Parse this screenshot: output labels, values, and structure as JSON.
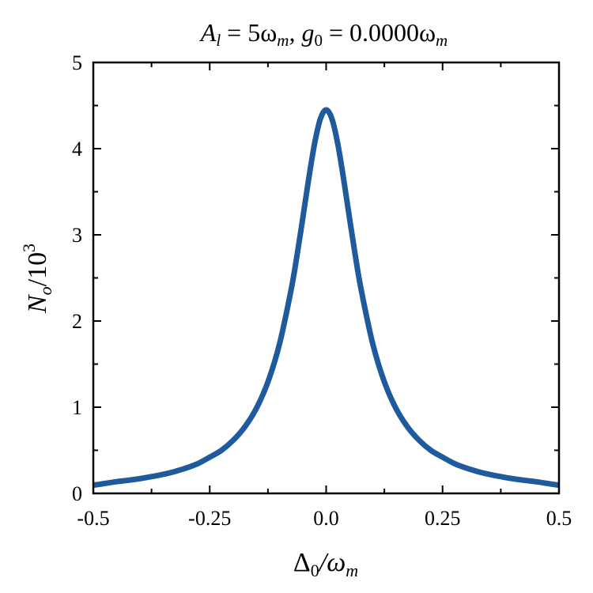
{
  "chart_data": {
    "type": "line",
    "title": {
      "main": "A",
      "sub1": "l",
      "mid": " = 5ω",
      "sub2": "m",
      "mid2": ", g",
      "sub3": "0",
      "mid3": " = 0.0000ω",
      "sub4": "m"
    },
    "xlabel": {
      "main": "Δ",
      "sub1": "0",
      "mid": "/ω",
      "sub2": "m"
    },
    "ylabel": {
      "main": "N",
      "sub1": "o",
      "mid": "/10",
      "sup": "3"
    },
    "xlim": [
      -0.5,
      0.5
    ],
    "ylim": [
      0,
      5
    ],
    "xticks": [
      -0.5,
      -0.25,
      0.0,
      0.25,
      0.5
    ],
    "xtick_labels": [
      "-0.5",
      "-0.25",
      "0.0",
      "0.25",
      "0.5"
    ],
    "yticks": [
      0,
      1,
      2,
      3,
      4,
      5
    ],
    "ytick_labels": [
      "0",
      "1",
      "2",
      "3",
      "4",
      "5"
    ],
    "grid": false,
    "line_color": "#1f5a9c",
    "series": [
      {
        "name": "N_o",
        "x": [
          0,
          0.0125,
          0.025,
          0.0375,
          0.05,
          0.0625,
          0.075,
          0.1,
          0.125,
          0.15,
          0.175,
          0.2,
          0.225,
          0.25,
          0.275,
          0.3,
          0.325,
          0.35,
          0.375,
          0.4,
          0.425,
          0.45,
          0.475,
          0.5
        ],
        "y": [
          4.45,
          4.344,
          4.054,
          3.648,
          3.2,
          2.763,
          2.369,
          1.737,
          1.293,
          0.985,
          0.769,
          0.614,
          0.499,
          0.42,
          0.347,
          0.295,
          0.254,
          0.221,
          0.194,
          0.171,
          0.152,
          0.136,
          0.115,
          0.095
        ]
      }
    ]
  }
}
